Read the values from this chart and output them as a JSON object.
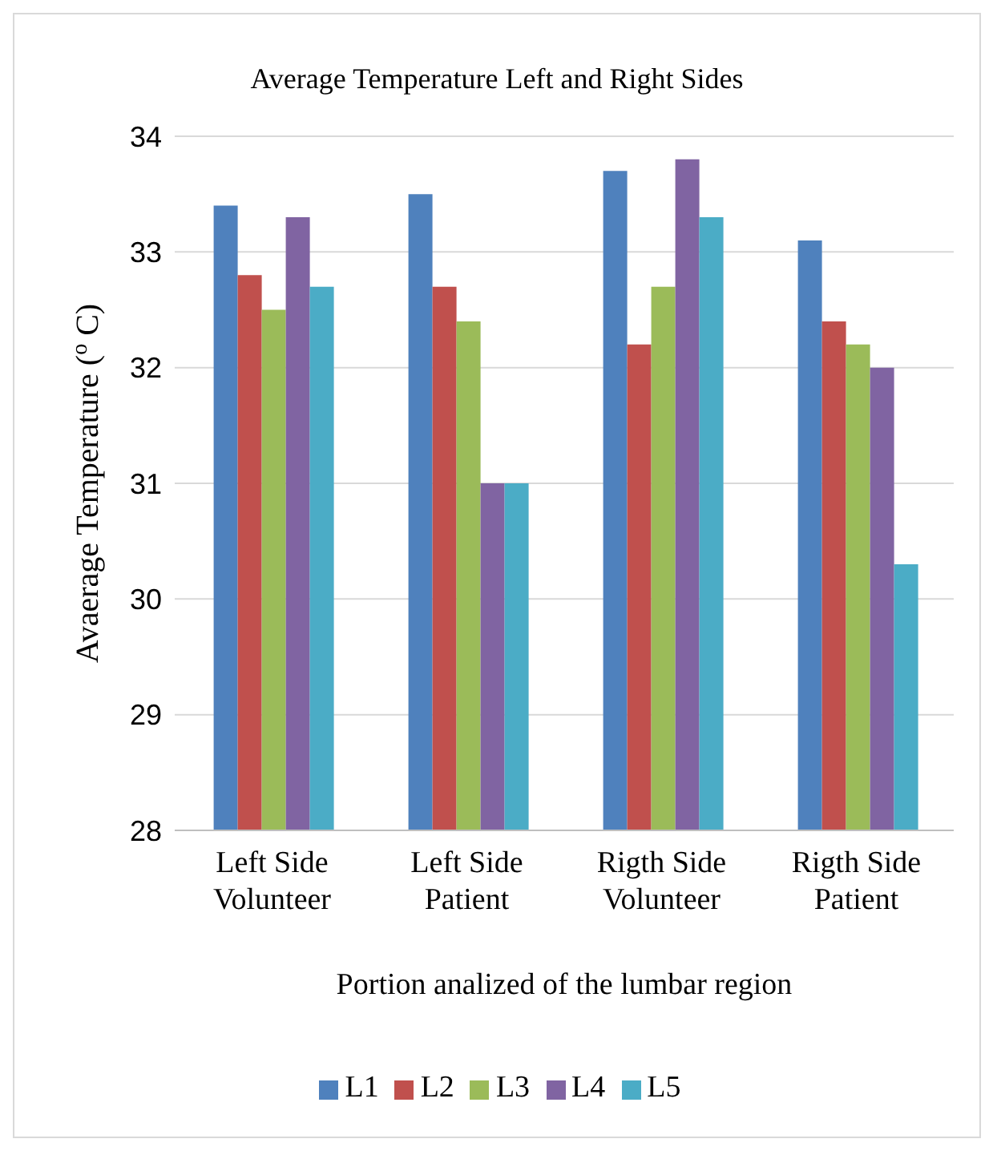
{
  "chart_data": {
    "type": "bar",
    "title": "Average Temperature Left and Right Sides",
    "xlabel": "Portion analized of the lumbar region",
    "ylabel": "Avaerage Temperature ($^{o}$ C)",
    "categories": [
      "Left Side Volunteer",
      "Left Side Patient",
      "Rigth Side Volunteer",
      "Rigth Side Patient"
    ],
    "series": [
      {
        "name": "L1",
        "color": "#4f81bd",
        "values": [
          33.4,
          33.5,
          33.7,
          33.1
        ]
      },
      {
        "name": "L2",
        "color": "#c0504d",
        "values": [
          32.8,
          32.7,
          32.2,
          32.4
        ]
      },
      {
        "name": "L3",
        "color": "#9bbb59",
        "values": [
          32.5,
          32.4,
          32.7,
          32.2
        ]
      },
      {
        "name": "L4",
        "color": "#8064a2",
        "values": [
          33.3,
          31.0,
          33.8,
          32.0
        ]
      },
      {
        "name": "L5",
        "color": "#4bacc6",
        "values": [
          32.7,
          31.0,
          33.3,
          30.3
        ]
      }
    ],
    "ylim": [
      28,
      34
    ],
    "yticks": [
      28,
      29,
      30,
      31,
      32,
      33,
      34
    ],
    "grid": "y",
    "legend": "bottom"
  }
}
